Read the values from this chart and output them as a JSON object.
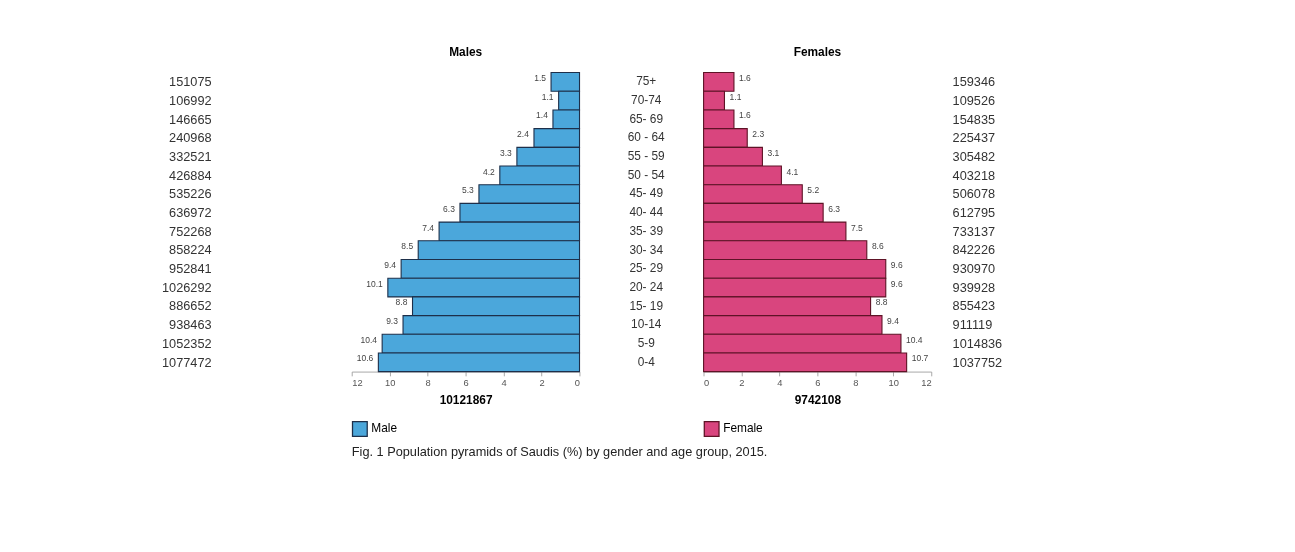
{
  "chart_data": [
    {
      "type": "bar",
      "orientation": "horizontal",
      "title": "Males",
      "xlabel": "10121867",
      "categories": [
        "75+",
        "70-74",
        "65- 69",
        "60 - 64",
        "55 - 59",
        "50 - 54",
        "45- 49",
        "40- 44",
        "35- 39",
        "30- 34",
        "25- 29",
        "20- 24",
        "15- 19",
        "10-14",
        "5-9",
        "0-4"
      ],
      "series": [
        {
          "name": "Male",
          "color": "#4ba7db",
          "values": [
            1.5,
            1.1,
            1.4,
            2.4,
            3.3,
            4.2,
            5.3,
            6.3,
            7.4,
            8.5,
            9.4,
            10.1,
            8.8,
            9.3,
            10.4,
            10.6
          ]
        }
      ],
      "xlim": [
        12,
        0
      ],
      "xticks": [
        12,
        10,
        8,
        6,
        4,
        2,
        0
      ],
      "data_labels": true,
      "grid": false,
      "legend": "bottom",
      "annotations": [
        "151075",
        "106992",
        "146665",
        "240968",
        "332521",
        "426884",
        "535226",
        "636972",
        "752268",
        "858224",
        "952841",
        "1026292",
        "886652",
        "938463",
        "1052352",
        "1077472"
      ]
    },
    {
      "type": "bar",
      "orientation": "horizontal",
      "title": "Females",
      "xlabel": "9742108",
      "tick_labels": "x",
      "categories": [
        null,
        null,
        null,
        null,
        null,
        null,
        null,
        null,
        null,
        null,
        null,
        null,
        null,
        null,
        null,
        null
      ],
      "series": [
        {
          "name": "Female",
          "color": "#d9457e",
          "values": [
            1.6,
            1.1,
            1.6,
            2.3,
            3.1,
            4.1,
            5.2,
            6.3,
            7.5,
            8.6,
            9.6,
            9.6,
            8.8,
            9.4,
            10.4,
            10.7
          ]
        }
      ],
      "xlim": [
        0,
        12
      ],
      "xticks": [
        0,
        2,
        4,
        6,
        8,
        10,
        12
      ],
      "data_labels": true,
      "grid": false,
      "legend": "bottom",
      "annotations": [
        "159346",
        "109526",
        "154835",
        "225437",
        "305482",
        "403218",
        "506078",
        "612795",
        "733137",
        "842226",
        "930970",
        "939928",
        "855423",
        "911119",
        "1014836",
        "1037752",
        "Fig. 1 Population pyramids of Saudis (%) by gender and age group, 2015."
      ]
    }
  ]
}
